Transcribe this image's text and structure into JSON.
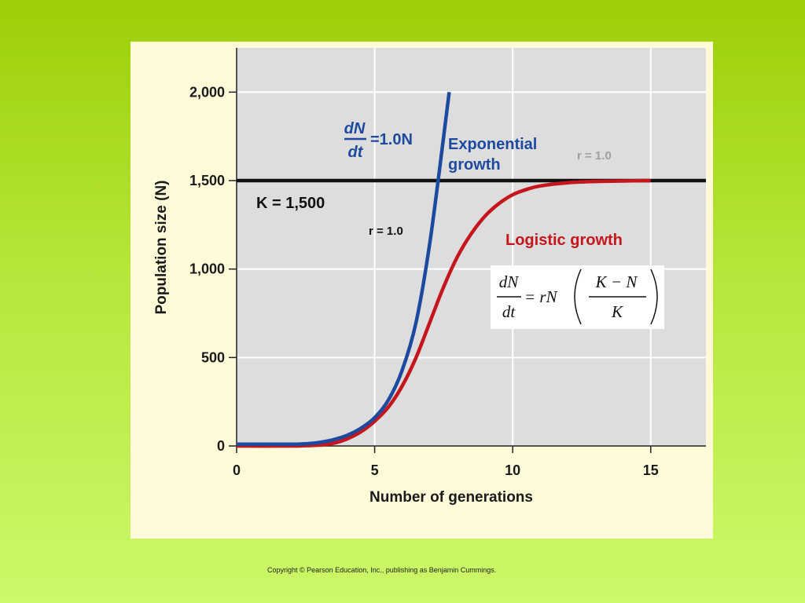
{
  "chart_data": {
    "type": "line",
    "xlabel": "Number of generations",
    "ylabel": "Population size (N)",
    "xlim": [
      0,
      17
    ],
    "ylim": [
      0,
      2250
    ],
    "x_ticks": [
      "0",
      "5",
      "10",
      "15"
    ],
    "y_ticks": [
      "0",
      "500",
      "1,000",
      "1,500",
      "2,000"
    ],
    "grid": true,
    "series": [
      {
        "name": "Exponential growth",
        "color": "#1d4a9e",
        "x": [
          0,
          1,
          2,
          2.5,
          3,
          3.5,
          4,
          4.5,
          5,
          5.5,
          6,
          6.5,
          7,
          7.5,
          7.7
        ],
        "y": [
          10,
          10,
          10,
          12,
          20,
          35,
          60,
          100,
          160,
          260,
          430,
          700,
          1150,
          1750,
          2000
        ]
      },
      {
        "name": "Logistic growth",
        "color": "#c4161c",
        "x": [
          0,
          2,
          3,
          3.5,
          4,
          4.5,
          5,
          5.5,
          6,
          6.5,
          7,
          7.5,
          8,
          8.5,
          9,
          9.5,
          10,
          10.5,
          11,
          12,
          13,
          14,
          15
        ],
        "y": [
          0,
          0,
          5,
          15,
          40,
          80,
          140,
          220,
          340,
          500,
          700,
          900,
          1070,
          1200,
          1300,
          1370,
          1420,
          1450,
          1470,
          1488,
          1495,
          1498,
          1500
        ]
      }
    ],
    "reference_line": {
      "label": "K = 1,500",
      "y": 1500,
      "color": "#111111"
    }
  },
  "annotations": {
    "exp_eq_num": "dN",
    "exp_eq_den": "dt",
    "exp_eq_rhs": "=1.0N",
    "exp_label_line1": "Exponential",
    "exp_label_line2": "growth",
    "r_gray": "r = 1.0",
    "k_label": "K = 1,500",
    "r_black": "r = 1.0",
    "logistic_label": "Logistic growth",
    "log_eq_lhs_num": "dN",
    "log_eq_lhs_den": "dt",
    "log_eq_mid": "= rN",
    "log_eq_rhs_num": "K − N",
    "log_eq_rhs_den": "K"
  },
  "copyright": "Copyright © Pearson Education, Inc., publishing as Benjamin Cummings."
}
